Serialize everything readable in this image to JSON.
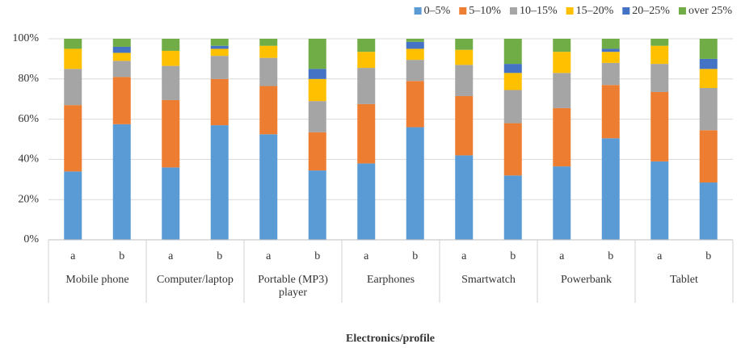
{
  "chart_data": {
    "type": "stacked_bar",
    "x_label": "Electronics/profile",
    "categories": [
      "a",
      "b",
      "a",
      "b",
      "a",
      "b",
      "a",
      "b",
      "a",
      "b",
      "a",
      "b",
      "a",
      "b"
    ],
    "groups": [
      "Mobile phone",
      "Computer/laptop",
      "Portable (MP3) player",
      "Earphones",
      "Smartwatch",
      "Powerbank",
      "Tablet"
    ],
    "series": [
      {
        "name": "0–5%",
        "color": "#5b9bd5",
        "values": [
          34,
          57.5,
          36,
          57,
          52.5,
          34.5,
          38,
          56,
          42,
          32,
          36.5,
          50.5,
          39,
          28.5
        ]
      },
      {
        "name": "5–10%",
        "color": "#ed7d31",
        "values": [
          33,
          23.5,
          33.5,
          23,
          24,
          19,
          29.5,
          23,
          29.5,
          26,
          29,
          26.5,
          34.5,
          26
        ]
      },
      {
        "name": "10–15%",
        "color": "#a5a5a5",
        "values": [
          18,
          8,
          17,
          11.5,
          14,
          15.5,
          18,
          10.5,
          15.5,
          16.5,
          17.5,
          11,
          14,
          21
        ]
      },
      {
        "name": "15–20%",
        "color": "#ffc000",
        "values": [
          10,
          4,
          7.5,
          3.5,
          6,
          11,
          8,
          5.5,
          7.5,
          8.5,
          10.5,
          5.5,
          9,
          9.5
        ]
      },
      {
        "name": "20–25%",
        "color": "#4472c4",
        "values": [
          0,
          3,
          0,
          1.5,
          0,
          5,
          0,
          3.5,
          0,
          4.5,
          0,
          1.5,
          0,
          5
        ]
      },
      {
        "name": "over 25%",
        "color": "#70ad47",
        "values": [
          5,
          4,
          6,
          3.5,
          3.5,
          15,
          6.5,
          1.5,
          5.5,
          12.5,
          6.5,
          5,
          3.5,
          10
        ]
      }
    ],
    "ylim": [
      0,
      100
    ],
    "yticks": [
      {
        "value": 0,
        "label": "0%"
      },
      {
        "value": 20,
        "label": "20%"
      },
      {
        "value": 40,
        "label": "40%"
      },
      {
        "value": 60,
        "label": "60%"
      },
      {
        "value": 80,
        "label": "80%"
      },
      {
        "value": 100,
        "label": "100%"
      }
    ],
    "grid": true,
    "legend": "top-right"
  }
}
